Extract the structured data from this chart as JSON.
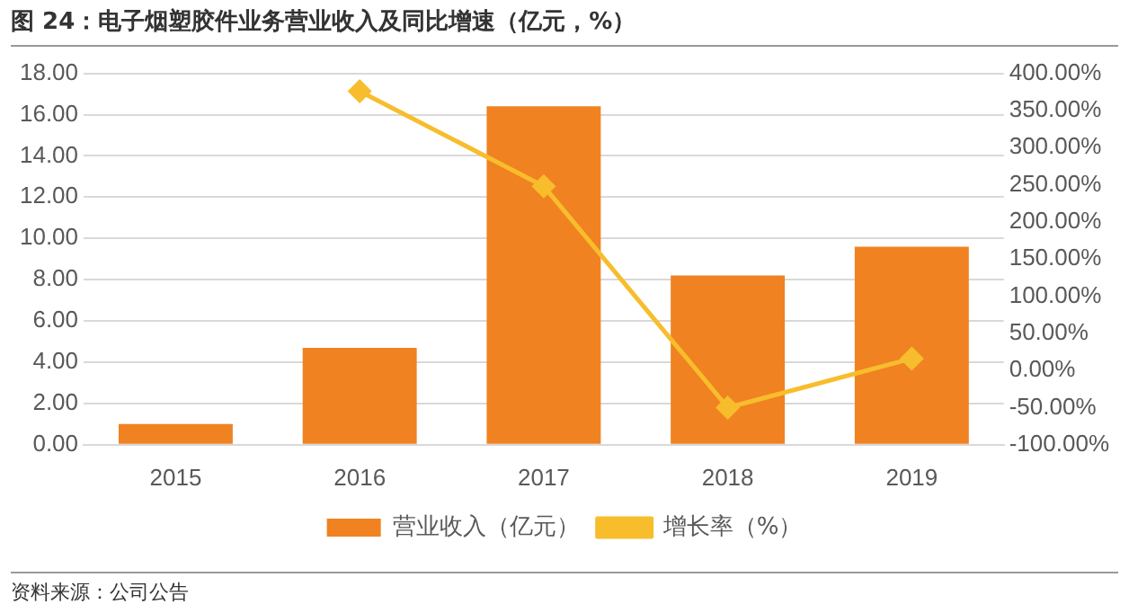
{
  "chart_data": {
    "type": "bar",
    "title": "图 24：电子烟塑胶件业务营业收入及同比增速（亿元，%）",
    "categories": [
      "2015",
      "2016",
      "2017",
      "2018",
      "2019"
    ],
    "series": [
      {
        "name": "营业收入（亿元）",
        "color": "#f08221",
        "values": [
          1.0,
          4.7,
          16.4,
          8.2,
          9.6
        ]
      },
      {
        "name": "增长率（%）",
        "type": "line",
        "axis": "y2",
        "color": "#f7bd2c",
        "values": [
          null,
          376,
          248,
          -50,
          16
        ]
      }
    ],
    "ylim": [
      0,
      18
    ],
    "yticks": [
      {
        "value": 0,
        "label": "0.00"
      },
      {
        "value": 2,
        "label": "2.00"
      },
      {
        "value": 4,
        "label": "4.00"
      },
      {
        "value": 6,
        "label": "6.00"
      },
      {
        "value": 8,
        "label": "8.00"
      },
      {
        "value": 10,
        "label": "10.00"
      },
      {
        "value": 12,
        "label": "12.00"
      },
      {
        "value": 14,
        "label": "14.00"
      },
      {
        "value": 16,
        "label": "16.00"
      },
      {
        "value": 18,
        "label": "18.00"
      }
    ],
    "y2lim": [
      -100,
      400
    ],
    "y2ticks": [
      {
        "value": -100,
        "label": "-100.00%"
      },
      {
        "value": -50,
        "label": "-50.00%"
      },
      {
        "value": 0,
        "label": "0.00%"
      },
      {
        "value": 50,
        "label": "50.00%"
      },
      {
        "value": 100,
        "label": "100.00%"
      },
      {
        "value": 150,
        "label": "150.00%"
      },
      {
        "value": 200,
        "label": "200.00%"
      },
      {
        "value": 250,
        "label": "250.00%"
      },
      {
        "value": 300,
        "label": "300.00%"
      },
      {
        "value": 350,
        "label": "350.00%"
      },
      {
        "value": 400,
        "label": "400.00%"
      }
    ],
    "grid": "y",
    "legend": "bottom",
    "marker": "diamond",
    "line_style": "solid",
    "annotations": [
      "资料来源：公司公告"
    ]
  }
}
